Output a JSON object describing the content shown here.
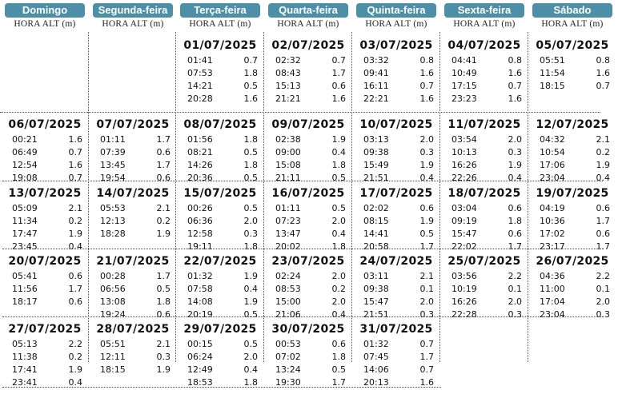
{
  "headers": {
    "days": [
      "Domingo",
      "Segunda-feira",
      "Terça-feira",
      "Quarta-feira",
      "Quinta-feira",
      "Sexta-feira",
      "Sábado"
    ],
    "sublabel": "HORA ALT (m)"
  },
  "weeks": [
    [
      null,
      null,
      {
        "date": "01/07/2025",
        "tides": [
          [
            "01:41",
            "0.7"
          ],
          [
            "07:53",
            "1.8"
          ],
          [
            "14:21",
            "0.5"
          ],
          [
            "20:28",
            "1.6"
          ]
        ]
      },
      {
        "date": "02/07/2025",
        "tides": [
          [
            "02:32",
            "0.7"
          ],
          [
            "08:43",
            "1.7"
          ],
          [
            "15:13",
            "0.6"
          ],
          [
            "21:21",
            "1.6"
          ]
        ]
      },
      {
        "date": "03/07/2025",
        "tides": [
          [
            "03:32",
            "0.8"
          ],
          [
            "09:41",
            "1.6"
          ],
          [
            "16:11",
            "0.7"
          ],
          [
            "22:21",
            "1.6"
          ]
        ]
      },
      {
        "date": "04/07/2025",
        "tides": [
          [
            "04:41",
            "0.8"
          ],
          [
            "10:49",
            "1.6"
          ],
          [
            "17:15",
            "0.7"
          ],
          [
            "23:23",
            "1.6"
          ]
        ]
      },
      {
        "date": "05/07/2025",
        "tides": [
          [
            "05:51",
            "0.8"
          ],
          [
            "11:54",
            "1.6"
          ],
          [
            "18:15",
            "0.7"
          ]
        ]
      }
    ],
    [
      {
        "date": "06/07/2025",
        "tides": [
          [
            "00:21",
            "1.6"
          ],
          [
            "06:49",
            "0.7"
          ],
          [
            "12:54",
            "1.6"
          ],
          [
            "19:08",
            "0.7"
          ]
        ]
      },
      {
        "date": "07/07/2025",
        "tides": [
          [
            "01:11",
            "1.7"
          ],
          [
            "07:39",
            "0.6"
          ],
          [
            "13:45",
            "1.7"
          ],
          [
            "19:54",
            "0.6"
          ]
        ]
      },
      {
        "date": "08/07/2025",
        "tides": [
          [
            "01:56",
            "1.8"
          ],
          [
            "08:21",
            "0.5"
          ],
          [
            "14:26",
            "1.8"
          ],
          [
            "20:36",
            "0.5"
          ]
        ]
      },
      {
        "date": "09/07/2025",
        "tides": [
          [
            "02:38",
            "1.9"
          ],
          [
            "09:00",
            "0.4"
          ],
          [
            "15:08",
            "1.8"
          ],
          [
            "21:11",
            "0.5"
          ]
        ]
      },
      {
        "date": "10/07/2025",
        "tides": [
          [
            "03:13",
            "2.0"
          ],
          [
            "09:38",
            "0.3"
          ],
          [
            "15:49",
            "1.9"
          ],
          [
            "21:51",
            "0.4"
          ]
        ]
      },
      {
        "date": "11/07/2025",
        "tides": [
          [
            "03:54",
            "2.0"
          ],
          [
            "10:13",
            "0.3"
          ],
          [
            "16:26",
            "1.9"
          ],
          [
            "22:26",
            "0.4"
          ]
        ]
      },
      {
        "date": "12/07/2025",
        "tides": [
          [
            "04:32",
            "2.1"
          ],
          [
            "10:54",
            "0.2"
          ],
          [
            "17:06",
            "1.9"
          ],
          [
            "23:04",
            "0.4"
          ]
        ]
      }
    ],
    [
      {
        "date": "13/07/2025",
        "tides": [
          [
            "05:09",
            "2.1"
          ],
          [
            "11:34",
            "0.2"
          ],
          [
            "17:47",
            "1.9"
          ],
          [
            "23:45",
            "0.4"
          ]
        ]
      },
      {
        "date": "14/07/2025",
        "tides": [
          [
            "05:53",
            "2.1"
          ],
          [
            "12:13",
            "0.2"
          ],
          [
            "18:28",
            "1.9"
          ]
        ]
      },
      {
        "date": "15/07/2025",
        "tides": [
          [
            "00:26",
            "0.5"
          ],
          [
            "06:36",
            "2.0"
          ],
          [
            "12:58",
            "0.3"
          ],
          [
            "19:11",
            "1.8"
          ]
        ]
      },
      {
        "date": "16/07/2025",
        "tides": [
          [
            "01:11",
            "0.5"
          ],
          [
            "07:23",
            "2.0"
          ],
          [
            "13:47",
            "0.4"
          ],
          [
            "20:02",
            "1.8"
          ]
        ]
      },
      {
        "date": "17/07/2025",
        "tides": [
          [
            "02:02",
            "0.6"
          ],
          [
            "08:15",
            "1.9"
          ],
          [
            "14:41",
            "0.5"
          ],
          [
            "20:58",
            "1.7"
          ]
        ]
      },
      {
        "date": "18/07/2025",
        "tides": [
          [
            "03:04",
            "0.6"
          ],
          [
            "09:19",
            "1.8"
          ],
          [
            "15:47",
            "0.6"
          ],
          [
            "22:02",
            "1.7"
          ]
        ]
      },
      {
        "date": "19/07/2025",
        "tides": [
          [
            "04:19",
            "0.6"
          ],
          [
            "10:36",
            "1.7"
          ],
          [
            "17:02",
            "0.6"
          ],
          [
            "23:17",
            "1.7"
          ]
        ]
      }
    ],
    [
      {
        "date": "20/07/2025",
        "tides": [
          [
            "05:41",
            "0.6"
          ],
          [
            "11:56",
            "1.7"
          ],
          [
            "18:17",
            "0.6"
          ]
        ]
      },
      {
        "date": "21/07/2025",
        "tides": [
          [
            "00:28",
            "1.7"
          ],
          [
            "06:56",
            "0.5"
          ],
          [
            "13:08",
            "1.8"
          ],
          [
            "19:24",
            "0.6"
          ]
        ]
      },
      {
        "date": "22/07/2025",
        "tides": [
          [
            "01:32",
            "1.9"
          ],
          [
            "07:58",
            "0.4"
          ],
          [
            "14:08",
            "1.9"
          ],
          [
            "20:19",
            "0.5"
          ]
        ]
      },
      {
        "date": "23/07/2025",
        "tides": [
          [
            "02:24",
            "2.0"
          ],
          [
            "08:53",
            "0.2"
          ],
          [
            "15:00",
            "2.0"
          ],
          [
            "21:06",
            "0.4"
          ]
        ]
      },
      {
        "date": "24/07/2025",
        "tides": [
          [
            "03:11",
            "2.1"
          ],
          [
            "09:38",
            "0.1"
          ],
          [
            "15:47",
            "2.0"
          ],
          [
            "21:51",
            "0.3"
          ]
        ]
      },
      {
        "date": "25/07/2025",
        "tides": [
          [
            "03:56",
            "2.2"
          ],
          [
            "10:19",
            "0.1"
          ],
          [
            "16:26",
            "2.0"
          ],
          [
            "22:28",
            "0.3"
          ]
        ]
      },
      {
        "date": "26/07/2025",
        "tides": [
          [
            "04:36",
            "2.2"
          ],
          [
            "11:00",
            "0.1"
          ],
          [
            "17:04",
            "2.0"
          ],
          [
            "23:04",
            "0.3"
          ]
        ]
      }
    ],
    [
      {
        "date": "27/07/2025",
        "tides": [
          [
            "05:13",
            "2.2"
          ],
          [
            "11:38",
            "0.2"
          ],
          [
            "17:41",
            "1.9"
          ],
          [
            "23:41",
            "0.4"
          ]
        ]
      },
      {
        "date": "28/07/2025",
        "tides": [
          [
            "05:51",
            "2.1"
          ],
          [
            "12:11",
            "0.3"
          ],
          [
            "18:15",
            "1.9"
          ]
        ]
      },
      {
        "date": "29/07/2025",
        "tides": [
          [
            "00:15",
            "0.5"
          ],
          [
            "06:24",
            "2.0"
          ],
          [
            "12:49",
            "0.4"
          ],
          [
            "18:53",
            "1.8"
          ]
        ]
      },
      {
        "date": "30/07/2025",
        "tides": [
          [
            "00:53",
            "0.6"
          ],
          [
            "07:02",
            "1.8"
          ],
          [
            "13:24",
            "0.5"
          ],
          [
            "19:30",
            "1.7"
          ]
        ]
      },
      {
        "date": "31/07/2025",
        "tides": [
          [
            "01:32",
            "0.7"
          ],
          [
            "07:45",
            "1.7"
          ],
          [
            "14:06",
            "0.7"
          ],
          [
            "20:13",
            "1.6"
          ]
        ]
      },
      null,
      null
    ]
  ]
}
